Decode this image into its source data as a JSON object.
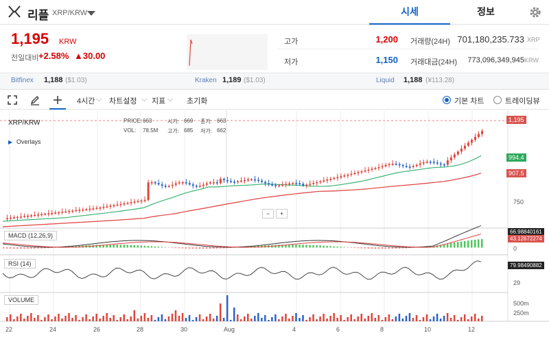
{
  "header": {
    "coin_name": "리플",
    "pair": "XRP/KRW",
    "tabs": [
      "시세",
      "정보"
    ]
  },
  "price_panel": {
    "price": "1,195",
    "price_unit": "KRW",
    "change_label": "전일대비",
    "change_pct": "+2.58%",
    "change_abs": "▲30.00",
    "high_label": "고가",
    "high_value": "1,200",
    "low_label": "저가",
    "low_value": "1,150",
    "volume_label": "거래량(24H)",
    "volume_value": "701,180,235.733",
    "volume_unit": "XRP",
    "amount_label": "거래대금(24H)",
    "amount_value": "773,096,349,945",
    "amount_unit": "KRW"
  },
  "exchanges": [
    {
      "name": "Bitfinex",
      "price": "1,188",
      "usd": "($1.03)"
    },
    {
      "name": "Kraken",
      "price": "1,189",
      "usd": "($1.03)"
    },
    {
      "name": "Liquid",
      "price": "1,188",
      "usd": "(¥113.28)"
    }
  ],
  "toolbar": {
    "interval": "4시간",
    "chart_settings": "차트설정",
    "indicators": "지표",
    "reset": "초기화",
    "basic_chart": "기본 차트",
    "trading_view": "트레이딩뷰"
  },
  "chart": {
    "symbol": "XRP/KRW",
    "overlays": "Overlays",
    "info": {
      "price_label": "PRICE:",
      "price": "663",
      "open_label": "시가:",
      "open": "669",
      "close_label": "종가:",
      "close": "663",
      "vol_label": "VOL:",
      "vol": "78.5M",
      "high_label": "고가:",
      "high": "685",
      "low_label": "저가:",
      "low": "662"
    },
    "price_tag": "1,195",
    "ma_green_tag": "994.4",
    "ma_red_tag": "907.5",
    "price_axis_750": "750",
    "macd_label": "MACD (12,26,9)",
    "macd_tag1": "66.98840161",
    "macd_tag2": "43.12672274",
    "macd_axis_0": "0",
    "rsi_label": "RSI (14)",
    "rsi_tag": "79.98490882",
    "rsi_axis": "29",
    "volume_label": "VOLUME",
    "vol_axis_500": "500m",
    "vol_axis_250": "250m",
    "x_labels": [
      "22",
      "24",
      "26",
      "28",
      "30",
      "Aug",
      "4",
      "6",
      "8",
      "10",
      "12"
    ],
    "colors": {
      "up": "#e0443a",
      "down": "#2a63c7",
      "ma_green": "#3cb371",
      "ma_red": "#e03c3c"
    }
  }
}
